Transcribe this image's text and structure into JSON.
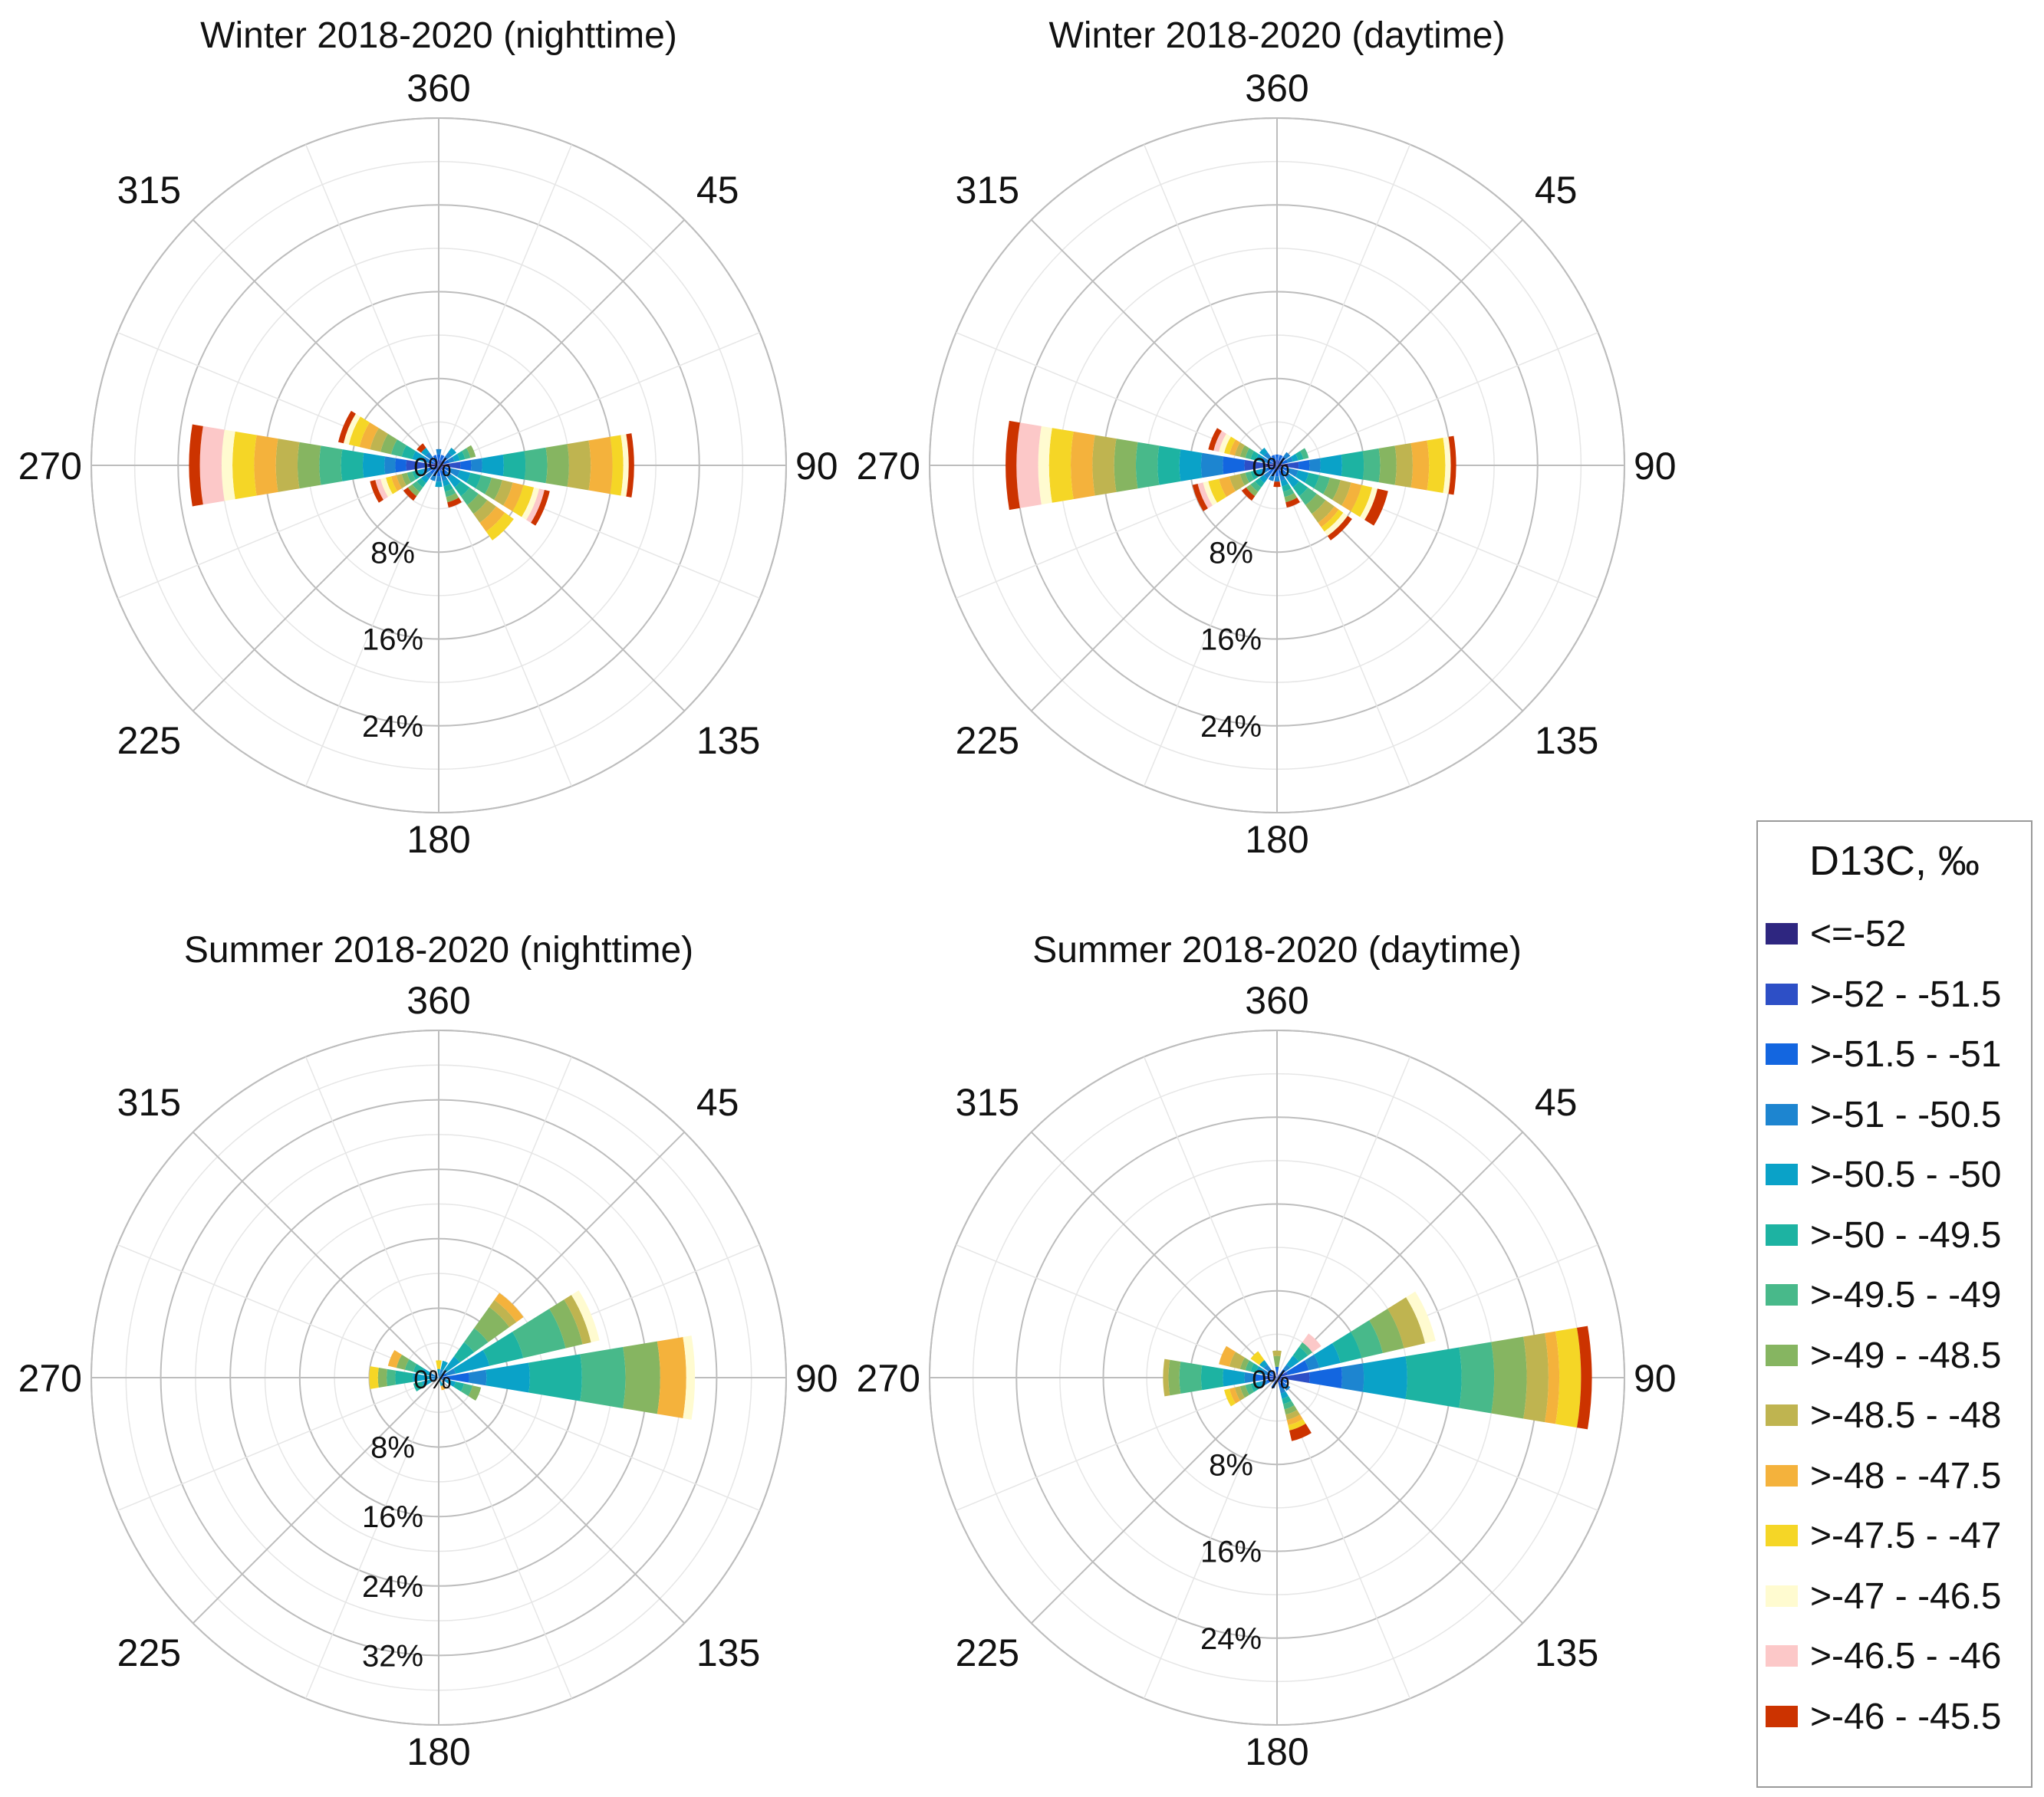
{
  "figure": {
    "legend_title": "D13C, ‰"
  },
  "legend": [
    {
      "label": "<=-52",
      "color": "#2e2680"
    },
    {
      "label": ">-52 - -51.5",
      "color": "#2d4fc6"
    },
    {
      "label": ">-51.5 - -51",
      "color": "#1366e0"
    },
    {
      "label": ">-51 - -50.5",
      "color": "#1d85d0"
    },
    {
      "label": ">-50.5 - -50",
      "color": "#0aa2c8"
    },
    {
      "label": ">-50 - -49.5",
      "color": "#1db3a2"
    },
    {
      "label": ">-49.5 - -49",
      "color": "#48b98a"
    },
    {
      "label": ">-49 - -48.5",
      "color": "#86b561"
    },
    {
      "label": ">-48.5 - -48",
      "color": "#bfb450"
    },
    {
      "label": ">-48 - -47.5",
      "color": "#f4b23c"
    },
    {
      "label": ">-47.5 - -47",
      "color": "#f5d626"
    },
    {
      "label": ">-47 - -46.5",
      "color": "#fffbd0"
    },
    {
      "label": ">-46.5 - -46",
      "color": "#fcc8c8"
    },
    {
      "label": ">-46 - -45.5",
      "color": "#cc3300"
    }
  ],
  "chart_data": [
    {
      "type": "wind-rose",
      "title": "Winter 2018-2020 (nighttime)",
      "direction_labels": [
        "360",
        "45",
        "90",
        "135",
        "180",
        "225",
        "270",
        "315"
      ],
      "radial_labels": [
        "8%",
        "16%",
        "24%"
      ],
      "rmax": 32,
      "center_label": "0%",
      "bins": [
        {
          "direction": 270,
          "segments": [
            1,
            2,
            1,
            1,
            2,
            2,
            2,
            2,
            2,
            2,
            2,
            1,
            2,
            1
          ]
        },
        {
          "direction": 90,
          "segments": [
            1,
            1,
            1,
            1,
            2,
            2,
            2,
            2,
            2,
            2,
            1,
            0.5,
            0,
            0.5
          ]
        },
        {
          "direction": 112.5,
          "segments": [
            0,
            0.5,
            0.5,
            1,
            1,
            1,
            1,
            1,
            1,
            1,
            1,
            0.5,
            0.5,
            0.5
          ]
        },
        {
          "direction": 292.5,
          "segments": [
            0,
            0.5,
            0.5,
            0.5,
            1,
            1,
            1,
            1,
            1,
            1,
            1,
            0.5,
            0,
            0.5
          ]
        },
        {
          "direction": 135,
          "segments": [
            0,
            0.5,
            0.5,
            0.5,
            1,
            1,
            1,
            1,
            1,
            1,
            1
          ]
        },
        {
          "direction": 247.5,
          "segments": [
            0,
            0.5,
            0.5,
            0.5,
            0.5,
            0.5,
            0.5,
            0.5,
            0.5,
            0.5,
            0.5,
            0.5,
            0.5,
            0.5
          ]
        },
        {
          "direction": 225,
          "segments": [
            0,
            0.5,
            0.5,
            0.5,
            0.5,
            0.5,
            0.5,
            0.5,
            0,
            0,
            0,
            0,
            0,
            0.5
          ]
        },
        {
          "direction": 157.5,
          "segments": [
            0,
            0.5,
            0.5,
            0.5,
            0.5,
            0.5,
            0.5,
            0.5,
            0,
            0,
            0,
            0,
            0,
            0.5
          ]
        },
        {
          "direction": 315,
          "segments": [
            0,
            0.5,
            0.5,
            0.5,
            0.5,
            0,
            0,
            0,
            0,
            0,
            0,
            0,
            0,
            0.5
          ]
        },
        {
          "direction": 67.5,
          "segments": [
            0,
            0.5,
            0.5,
            0.5,
            0.5,
            0.5,
            0.5,
            0.5
          ]
        },
        {
          "direction": 45,
          "segments": [
            0,
            0.5,
            0.5,
            0.5,
            0.5
          ]
        },
        {
          "direction": 180,
          "segments": [
            0,
            0.5,
            0.5,
            0.5,
            0.5
          ]
        },
        {
          "direction": 202.5,
          "segments": [
            0,
            0.5,
            0.5,
            0.5
          ]
        },
        {
          "direction": 0,
          "segments": [
            0,
            0.5,
            0.5,
            0.5
          ]
        },
        {
          "direction": 22.5,
          "segments": [
            0,
            0.5,
            0.5
          ]
        },
        {
          "direction": 337.5,
          "segments": [
            0,
            0.5,
            0.5
          ]
        }
      ]
    },
    {
      "type": "wind-rose",
      "title": "Winter 2018-2020 (daytime)",
      "direction_labels": [
        "360",
        "45",
        "90",
        "135",
        "180",
        "225",
        "270",
        "315"
      ],
      "radial_labels": [
        "8%",
        "16%",
        "24%"
      ],
      "rmax": 32,
      "center_label": "0%",
      "bins": [
        {
          "direction": 270,
          "segments": [
            1,
            2,
            2,
            2,
            2,
            2,
            2,
            2,
            2,
            2,
            2,
            1,
            2,
            1
          ]
        },
        {
          "direction": 90,
          "segments": [
            1,
            1,
            1,
            1,
            2,
            2,
            1.5,
            1.5,
            1.5,
            1.5,
            1.5,
            0.5,
            0,
            0.5
          ]
        },
        {
          "direction": 112.5,
          "segments": [
            0,
            0.5,
            0.5,
            1,
            1,
            1,
            1,
            1,
            1,
            1,
            1,
            0.5,
            0,
            1
          ]
        },
        {
          "direction": 247.5,
          "segments": [
            0,
            0.5,
            0.5,
            0.5,
            0.5,
            0.5,
            0.5,
            0.5,
            1,
            1,
            1,
            0.5,
            0.5,
            0.5
          ]
        },
        {
          "direction": 135,
          "segments": [
            0,
            0.5,
            0.5,
            0.5,
            1,
            1,
            1,
            1,
            1,
            0.5,
            0.5,
            0.5,
            0,
            0.5
          ]
        },
        {
          "direction": 292.5,
          "segments": [
            0,
            0.5,
            0.5,
            0.5,
            0.5,
            0.5,
            0.5,
            0.5,
            0.5,
            0.5,
            0.5,
            0.5,
            0.5,
            0.5
          ]
        },
        {
          "direction": 225,
          "segments": [
            0,
            0.5,
            0.5,
            0.5,
            0.5,
            0.5,
            0.5,
            0.5,
            0,
            0,
            0,
            0,
            0,
            0.5
          ]
        },
        {
          "direction": 157.5,
          "segments": [
            0,
            0.5,
            0.5,
            0.5,
            0.5,
            0.5,
            0.5,
            0.5,
            0,
            0,
            0,
            0,
            0,
            0.5
          ]
        },
        {
          "direction": 315,
          "segments": [
            0,
            0.5,
            0.5,
            0.5,
            0.5
          ]
        },
        {
          "direction": 67.5,
          "segments": [
            0,
            0.5,
            0.5,
            0.5,
            0.5,
            0.5,
            0.5
          ]
        },
        {
          "direction": 45,
          "segments": [
            0,
            0.5,
            0.5,
            0.5
          ]
        },
        {
          "direction": 180,
          "segments": [
            0,
            0.5,
            0.5,
            0.5,
            0,
            0,
            0,
            0,
            0,
            0,
            0,
            0,
            0,
            0.5
          ]
        },
        {
          "direction": 202.5,
          "segments": [
            0,
            0.5,
            0.5,
            0.5
          ]
        },
        {
          "direction": 0,
          "segments": [
            0,
            0.5,
            0.5
          ]
        },
        {
          "direction": 22.5,
          "segments": [
            0,
            0.5,
            0.5
          ]
        },
        {
          "direction": 337.5,
          "segments": [
            0,
            0.5,
            0.5
          ]
        }
      ]
    },
    {
      "type": "wind-rose",
      "title": "Summer 2018-2020 (nighttime)",
      "direction_labels": [
        "360",
        "45",
        "90",
        "135",
        "180",
        "225",
        "270",
        "315"
      ],
      "radial_labels": [
        "8%",
        "16%",
        "24%",
        "32%"
      ],
      "rmax": 40,
      "center_label": "0%",
      "bins": [
        {
          "direction": 90,
          "segments": [
            0,
            0.5,
            3,
            2,
            5,
            6,
            5,
            4,
            0,
            3,
            0,
            1
          ]
        },
        {
          "direction": 67.5,
          "segments": [
            0,
            0,
            1,
            1,
            4,
            4,
            5,
            2,
            1,
            0,
            0,
            1
          ]
        },
        {
          "direction": 45,
          "segments": [
            0,
            0,
            0,
            1,
            2,
            2,
            2,
            3,
            1,
            1
          ]
        },
        {
          "direction": 270,
          "segments": [
            0,
            0,
            0,
            1,
            2,
            2,
            1,
            1,
            0,
            0,
            1
          ]
        },
        {
          "direction": 292.5,
          "segments": [
            0,
            0,
            0,
            1,
            1,
            1,
            1,
            1,
            0,
            1
          ]
        },
        {
          "direction": 112.5,
          "segments": [
            0,
            0,
            0,
            1,
            1,
            1,
            1,
            1
          ]
        },
        {
          "direction": 247.5,
          "segments": [
            0,
            0,
            0,
            1,
            1,
            1
          ]
        },
        {
          "direction": 22.5,
          "segments": [
            0,
            0,
            0,
            1,
            1
          ]
        },
        {
          "direction": 360,
          "segments": [
            0,
            0,
            0,
            0.5,
            0.5,
            0,
            0,
            0,
            0,
            0,
            1
          ]
        },
        {
          "direction": 157.5,
          "segments": [
            0,
            0,
            0,
            0.5,
            0.5,
            0,
            0,
            0,
            0,
            0.5
          ]
        }
      ]
    },
    {
      "type": "wind-rose",
      "title": "Summer 2018-2020 (daytime)",
      "direction_labels": [
        "360",
        "45",
        "90",
        "135",
        "180",
        "225",
        "270",
        "315"
      ],
      "radial_labels": [
        "8%",
        "16%",
        "24%"
      ],
      "rmax": 32,
      "center_label": "0%",
      "bins": [
        {
          "direction": 90,
          "segments": [
            0,
            3,
            3,
            2,
            4,
            5,
            3,
            3,
            2,
            1,
            2,
            0,
            0,
            1
          ]
        },
        {
          "direction": 67.5,
          "segments": [
            0,
            1,
            2,
            1,
            2,
            2,
            2,
            2,
            2,
            0,
            0,
            1
          ]
        },
        {
          "direction": 270,
          "segments": [
            0,
            1,
            1,
            1,
            2,
            2,
            2,
            1,
            0.5
          ]
        },
        {
          "direction": 45,
          "segments": [
            0,
            0.5,
            0.5,
            0.5,
            1,
            1,
            0.5,
            0,
            0,
            0,
            0,
            0,
            1
          ]
        },
        {
          "direction": 292.5,
          "segments": [
            0,
            0.5,
            0.5,
            0.5,
            0.5,
            0.5,
            0.5,
            0.5,
            1,
            1
          ]
        },
        {
          "direction": 315,
          "segments": [
            0,
            0.5,
            0.5,
            0.5,
            0.5,
            0,
            0,
            0,
            0,
            0,
            1
          ]
        },
        {
          "direction": 360,
          "segments": [
            0,
            0.5,
            0.5,
            0,
            0,
            0,
            0,
            1,
            0.5
          ]
        },
        {
          "direction": 247.5,
          "segments": [
            0,
            0.5,
            0.5,
            0.5,
            0.5,
            0.5,
            0.5,
            0.5,
            0.5,
            0.5,
            0.5
          ]
        },
        {
          "direction": 157.5,
          "segments": [
            0,
            0.5,
            0.5,
            0.5,
            0.5,
            0.5,
            0.5,
            0.5,
            0.5,
            0.5,
            0.5,
            0,
            0,
            1
          ]
        },
        {
          "direction": 135,
          "segments": [
            0,
            0.5,
            0.5,
            0.5
          ]
        },
        {
          "direction": 112.5,
          "segments": [
            0,
            0.5,
            0.5
          ]
        },
        {
          "direction": 202.5,
          "segments": [
            0,
            0.5,
            0.5
          ]
        }
      ]
    }
  ]
}
